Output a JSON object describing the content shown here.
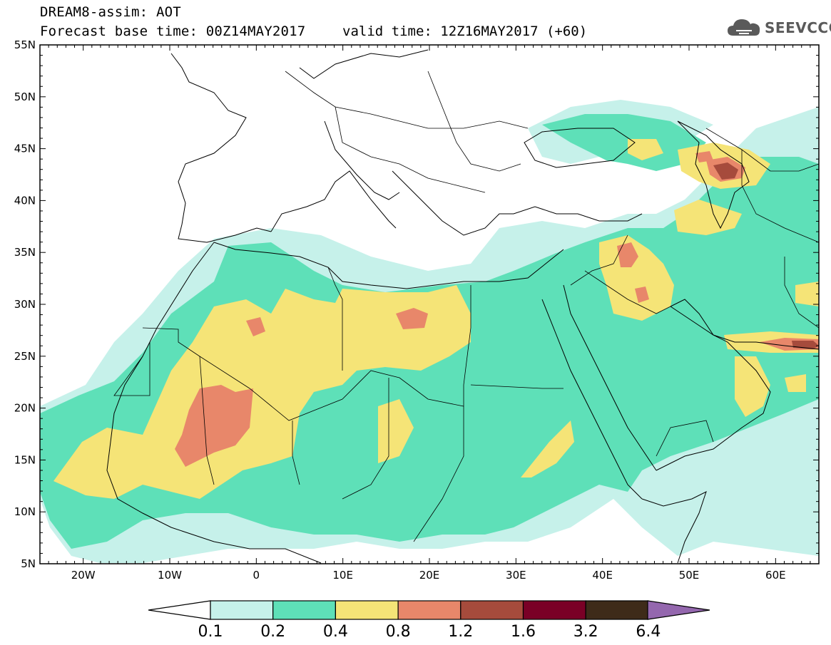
{
  "header": {
    "title": "DREAM8-assim: AOT",
    "base_time": "Forecast base time: 00Z14MAY2017",
    "valid_time": "valid time: 12Z16MAY2017 (+60)"
  },
  "logo": {
    "text": "SEEVCCC",
    "icon": "cloud-icon"
  },
  "map": {
    "lat_labels": [
      "55N",
      "50N",
      "45N",
      "40N",
      "35N",
      "30N",
      "25N",
      "20N",
      "15N",
      "10N",
      "5N"
    ],
    "lon_labels": [
      "20W",
      "10W",
      "0",
      "10E",
      "20E",
      "30E",
      "40E",
      "50E",
      "60E"
    ],
    "lat_values": [
      55,
      50,
      45,
      40,
      35,
      30,
      25,
      20,
      15,
      10,
      5
    ],
    "lon_values": [
      -20,
      -10,
      0,
      10,
      20,
      30,
      40,
      50,
      60
    ],
    "extent": {
      "lon_min": -25,
      "lon_max": 65,
      "lat_min": 5,
      "lat_max": 55
    }
  },
  "colorbar": {
    "labels": [
      "0.1",
      "0.2",
      "0.4",
      "0.8",
      "1.2",
      "1.6",
      "3.2",
      "6.4"
    ],
    "colors": [
      "#ffffff",
      "#c6f1ea",
      "#5ee0b8",
      "#f5e477",
      "#e8876a",
      "#a64b3c",
      "#7a0026",
      "#3e2b19",
      "#9467ae"
    ]
  }
}
